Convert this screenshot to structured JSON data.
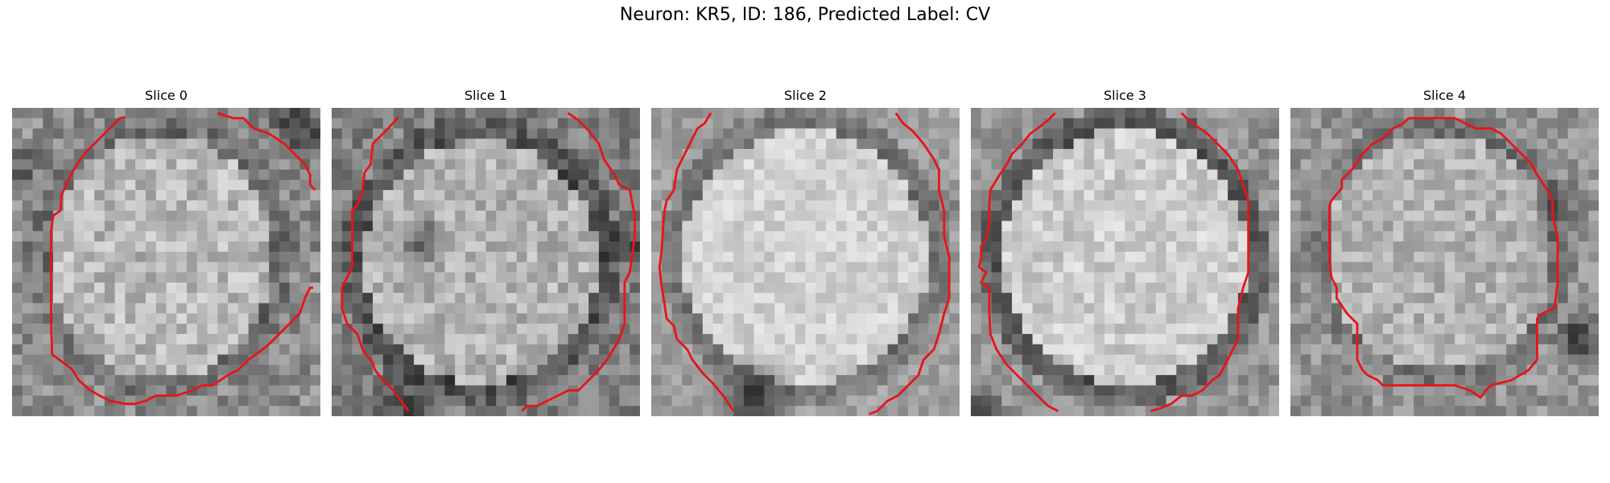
{
  "figure": {
    "title": "Neuron: KR5, ID: 186, Predicted Label: CV"
  },
  "panels": [
    {
      "title": "Slice 0",
      "brightness": "mid",
      "dark_corner": "top-right"
    },
    {
      "title": "Slice 1",
      "brightness": "mid",
      "dark_blob": "center-left"
    },
    {
      "title": "Slice 2",
      "brightness": "bright"
    },
    {
      "title": "Slice 3",
      "brightness": "bright"
    },
    {
      "title": "Slice 4",
      "brightness": "mid",
      "dark_blob": "right"
    }
  ],
  "colors": {
    "contour": "#e8141a",
    "background": "#ffffff"
  }
}
